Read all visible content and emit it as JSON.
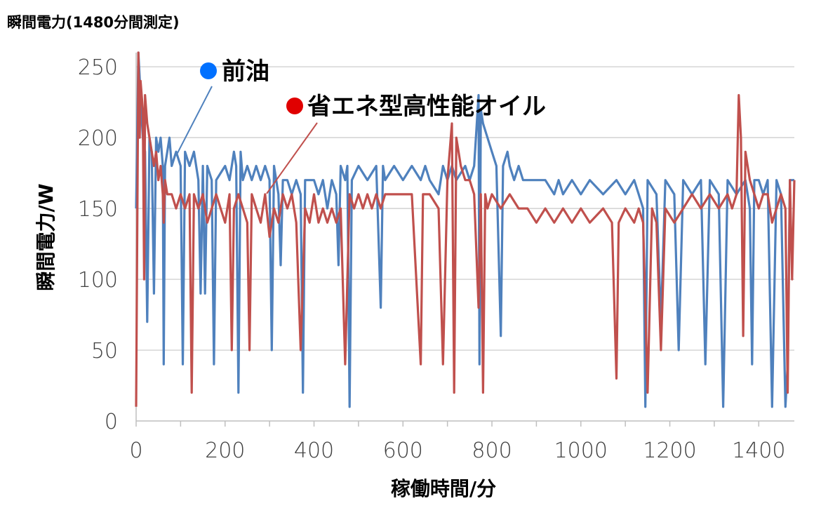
{
  "chart_data": {
    "type": "line",
    "title": "瞬間電力(1480分間測定)",
    "xlabel": "稼働時間/分",
    "ylabel": "瞬間電力/W",
    "xlim": [
      0,
      1480
    ],
    "ylim": [
      0,
      260
    ],
    "xticks": [
      0,
      200,
      400,
      600,
      800,
      1000,
      1200,
      1400
    ],
    "yticks": [
      0,
      50,
      100,
      150,
      200,
      250
    ],
    "grid": "horizontal",
    "series": [
      {
        "name": "前油",
        "color": "#4f81bd",
        "points": [
          [
            0,
            150
          ],
          [
            5,
            260
          ],
          [
            10,
            230
          ],
          [
            15,
            200
          ],
          [
            20,
            190
          ],
          [
            25,
            70
          ],
          [
            30,
            200
          ],
          [
            35,
            190
          ],
          [
            40,
            90
          ],
          [
            45,
            200
          ],
          [
            50,
            190
          ],
          [
            55,
            200
          ],
          [
            60,
            180
          ],
          [
            62,
            40
          ],
          [
            65,
            180
          ],
          [
            70,
            190
          ],
          [
            75,
            200
          ],
          [
            80,
            180
          ],
          [
            90,
            190
          ],
          [
            100,
            180
          ],
          [
            105,
            40
          ],
          [
            110,
            190
          ],
          [
            120,
            180
          ],
          [
            130,
            190
          ],
          [
            140,
            170
          ],
          [
            145,
            90
          ],
          [
            150,
            180
          ],
          [
            155,
            90
          ],
          [
            160,
            180
          ],
          [
            170,
            170
          ],
          [
            175,
            40
          ],
          [
            180,
            170
          ],
          [
            200,
            180
          ],
          [
            210,
            170
          ],
          [
            215,
            180
          ],
          [
            220,
            190
          ],
          [
            225,
            180
          ],
          [
            230,
            20
          ],
          [
            235,
            190
          ],
          [
            240,
            170
          ],
          [
            250,
            180
          ],
          [
            260,
            170
          ],
          [
            270,
            180
          ],
          [
            280,
            170
          ],
          [
            290,
            180
          ],
          [
            300,
            170
          ],
          [
            305,
            50
          ],
          [
            310,
            180
          ],
          [
            320,
            160
          ],
          [
            325,
            110
          ],
          [
            330,
            170
          ],
          [
            340,
            170
          ],
          [
            350,
            160
          ],
          [
            360,
            170
          ],
          [
            370,
            160
          ],
          [
            375,
            20
          ],
          [
            380,
            170
          ],
          [
            400,
            170
          ],
          [
            410,
            160
          ],
          [
            420,
            170
          ],
          [
            430,
            150
          ],
          [
            440,
            170
          ],
          [
            450,
            160
          ],
          [
            455,
            110
          ],
          [
            460,
            180
          ],
          [
            470,
            170
          ],
          [
            475,
            180
          ],
          [
            480,
            10
          ],
          [
            485,
            170
          ],
          [
            500,
            180
          ],
          [
            520,
            170
          ],
          [
            540,
            180
          ],
          [
            550,
            80
          ],
          [
            555,
            180
          ],
          [
            560,
            170
          ],
          [
            580,
            180
          ],
          [
            600,
            170
          ],
          [
            620,
            180
          ],
          [
            640,
            170
          ],
          [
            650,
            180
          ],
          [
            660,
            170
          ],
          [
            680,
            160
          ],
          [
            690,
            180
          ],
          [
            700,
            170
          ],
          [
            710,
            180
          ],
          [
            720,
            170
          ],
          [
            740,
            180
          ],
          [
            750,
            170
          ],
          [
            760,
            180
          ],
          [
            770,
            230
          ],
          [
            772,
            40
          ],
          [
            775,
            220
          ],
          [
            780,
            210
          ],
          [
            790,
            200
          ],
          [
            800,
            190
          ],
          [
            810,
            180
          ],
          [
            820,
            60
          ],
          [
            825,
            180
          ],
          [
            835,
            190
          ],
          [
            840,
            180
          ],
          [
            850,
            170
          ],
          [
            860,
            180
          ],
          [
            870,
            170
          ],
          [
            880,
            170
          ],
          [
            900,
            170
          ],
          [
            920,
            170
          ],
          [
            940,
            160
          ],
          [
            950,
            170
          ],
          [
            960,
            160
          ],
          [
            980,
            170
          ],
          [
            1000,
            160
          ],
          [
            1020,
            170
          ],
          [
            1050,
            160
          ],
          [
            1080,
            170
          ],
          [
            1100,
            160
          ],
          [
            1120,
            170
          ],
          [
            1130,
            160
          ],
          [
            1140,
            150
          ],
          [
            1145,
            10
          ],
          [
            1150,
            170
          ],
          [
            1170,
            160
          ],
          [
            1180,
            70
          ],
          [
            1190,
            170
          ],
          [
            1210,
            160
          ],
          [
            1220,
            50
          ],
          [
            1230,
            170
          ],
          [
            1250,
            160
          ],
          [
            1270,
            170
          ],
          [
            1280,
            40
          ],
          [
            1290,
            170
          ],
          [
            1310,
            160
          ],
          [
            1320,
            10
          ],
          [
            1330,
            170
          ],
          [
            1350,
            160
          ],
          [
            1370,
            170
          ],
          [
            1380,
            150
          ],
          [
            1385,
            40
          ],
          [
            1390,
            170
          ],
          [
            1400,
            170
          ],
          [
            1410,
            160
          ],
          [
            1420,
            170
          ],
          [
            1430,
            10
          ],
          [
            1440,
            170
          ],
          [
            1450,
            160
          ],
          [
            1460,
            10
          ],
          [
            1465,
            40
          ],
          [
            1470,
            170
          ],
          [
            1480,
            170
          ]
        ]
      },
      {
        "name": "省エネ型高性能オイル",
        "color": "#c0504d",
        "points": [
          [
            0,
            10
          ],
          [
            5,
            260
          ],
          [
            8,
            200
          ],
          [
            10,
            240
          ],
          [
            15,
            220
          ],
          [
            18,
            100
          ],
          [
            20,
            230
          ],
          [
            25,
            210
          ],
          [
            30,
            200
          ],
          [
            35,
            190
          ],
          [
            40,
            180
          ],
          [
            45,
            190
          ],
          [
            50,
            170
          ],
          [
            55,
            180
          ],
          [
            60,
            160
          ],
          [
            62,
            140
          ],
          [
            65,
            170
          ],
          [
            70,
            160
          ],
          [
            80,
            160
          ],
          [
            90,
            150
          ],
          [
            100,
            160
          ],
          [
            110,
            150
          ],
          [
            120,
            160
          ],
          [
            125,
            20
          ],
          [
            130,
            160
          ],
          [
            140,
            150
          ],
          [
            150,
            160
          ],
          [
            160,
            140
          ],
          [
            170,
            150
          ],
          [
            180,
            160
          ],
          [
            190,
            150
          ],
          [
            200,
            140
          ],
          [
            210,
            160
          ],
          [
            215,
            50
          ],
          [
            220,
            150
          ],
          [
            230,
            160
          ],
          [
            240,
            150
          ],
          [
            250,
            140
          ],
          [
            255,
            50
          ],
          [
            260,
            160
          ],
          [
            270,
            150
          ],
          [
            280,
            140
          ],
          [
            290,
            160
          ],
          [
            300,
            130
          ],
          [
            310,
            150
          ],
          [
            320,
            140
          ],
          [
            330,
            160
          ],
          [
            340,
            150
          ],
          [
            350,
            160
          ],
          [
            360,
            140
          ],
          [
            370,
            50
          ],
          [
            380,
            150
          ],
          [
            390,
            140
          ],
          [
            400,
            160
          ],
          [
            410,
            140
          ],
          [
            420,
            150
          ],
          [
            430,
            140
          ],
          [
            440,
            150
          ],
          [
            450,
            140
          ],
          [
            460,
            150
          ],
          [
            470,
            40
          ],
          [
            480,
            160
          ],
          [
            490,
            150
          ],
          [
            500,
            160
          ],
          [
            510,
            150
          ],
          [
            520,
            160
          ],
          [
            530,
            150
          ],
          [
            540,
            160
          ],
          [
            550,
            150
          ],
          [
            560,
            160
          ],
          [
            580,
            160
          ],
          [
            600,
            160
          ],
          [
            620,
            160
          ],
          [
            640,
            40
          ],
          [
            645,
            160
          ],
          [
            660,
            160
          ],
          [
            680,
            150
          ],
          [
            690,
            40
          ],
          [
            700,
            170
          ],
          [
            710,
            210
          ],
          [
            715,
            20
          ],
          [
            720,
            200
          ],
          [
            730,
            180
          ],
          [
            740,
            170
          ],
          [
            750,
            170
          ],
          [
            760,
            160
          ],
          [
            770,
            80
          ],
          [
            775,
            160
          ],
          [
            780,
            20
          ],
          [
            785,
            160
          ],
          [
            790,
            150
          ],
          [
            800,
            160
          ],
          [
            820,
            150
          ],
          [
            840,
            160
          ],
          [
            860,
            150
          ],
          [
            880,
            150
          ],
          [
            900,
            140
          ],
          [
            920,
            150
          ],
          [
            940,
            140
          ],
          [
            960,
            150
          ],
          [
            980,
            140
          ],
          [
            1000,
            150
          ],
          [
            1020,
            140
          ],
          [
            1050,
            150
          ],
          [
            1070,
            140
          ],
          [
            1080,
            30
          ],
          [
            1085,
            140
          ],
          [
            1100,
            150
          ],
          [
            1120,
            140
          ],
          [
            1130,
            150
          ],
          [
            1140,
            140
          ],
          [
            1150,
            20
          ],
          [
            1160,
            150
          ],
          [
            1170,
            140
          ],
          [
            1180,
            50
          ],
          [
            1190,
            150
          ],
          [
            1210,
            140
          ],
          [
            1230,
            150
          ],
          [
            1250,
            160
          ],
          [
            1270,
            150
          ],
          [
            1290,
            160
          ],
          [
            1310,
            150
          ],
          [
            1330,
            160
          ],
          [
            1340,
            150
          ],
          [
            1350,
            160
          ],
          [
            1355,
            230
          ],
          [
            1360,
            200
          ],
          [
            1365,
            60
          ],
          [
            1370,
            190
          ],
          [
            1380,
            170
          ],
          [
            1390,
            160
          ],
          [
            1400,
            150
          ],
          [
            1410,
            160
          ],
          [
            1420,
            160
          ],
          [
            1430,
            140
          ],
          [
            1440,
            150
          ],
          [
            1450,
            160
          ],
          [
            1460,
            150
          ],
          [
            1465,
            20
          ],
          [
            1470,
            170
          ],
          [
            1475,
            100
          ],
          [
            1480,
            170
          ]
        ]
      }
    ]
  }
}
